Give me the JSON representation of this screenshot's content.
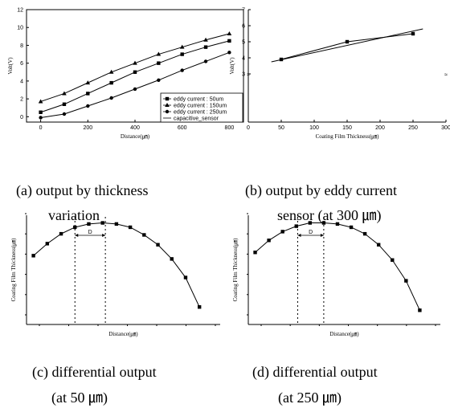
{
  "captions": {
    "a_line1": "(a) output by thickness",
    "a_line2": "variation",
    "b_line1": "(b) output by eddy current",
    "b_line2": "sensor (at 300 ㎛)",
    "c_line1": "(c) differential output",
    "c_line2": "(at 50 ㎛)",
    "d_line1": "(d) differential output",
    "d_line2": "(at 250  ㎛)"
  },
  "chart_data": [
    {
      "id": "a",
      "type": "line",
      "xlabel": "Distance(㎛)",
      "ylabel": "Volt(V)",
      "xlim": [
        -60,
        860
      ],
      "ylim": [
        -0.6,
        12
      ],
      "xticks": [
        0,
        200,
        400,
        600,
        800
      ],
      "yticks": [
        0,
        2,
        4,
        6,
        8,
        10,
        12
      ],
      "legend_position": "bottom-right",
      "series": [
        {
          "name": "eddy current : 50um",
          "marker": "square",
          "x": [
            0,
            100,
            200,
            300,
            400,
            500,
            600,
            700,
            800
          ],
          "y": [
            0.5,
            1.4,
            2.6,
            3.8,
            5.0,
            6.0,
            7.0,
            7.8,
            8.5
          ]
        },
        {
          "name": "eddy current : 150um",
          "marker": "triangle",
          "x": [
            0,
            100,
            200,
            300,
            400,
            500,
            600,
            700,
            800
          ],
          "y": [
            1.7,
            2.6,
            3.8,
            5.0,
            6.0,
            7.0,
            7.8,
            8.6,
            9.3
          ]
        },
        {
          "name": "eddy current : 250um",
          "marker": "circle",
          "x": [
            0,
            100,
            200,
            300,
            400,
            500,
            600,
            700,
            800
          ],
          "y": [
            -0.1,
            0.3,
            1.2,
            2.1,
            3.1,
            4.1,
            5.2,
            6.2,
            7.2
          ]
        },
        {
          "name": "capacitive_sensor",
          "marker": "none",
          "x": [],
          "y": []
        }
      ]
    },
    {
      "id": "b",
      "type": "line",
      "xlabel": "Coating Film Thickness(㎛)",
      "ylabel": "Volt(V)",
      "xlim": [
        0,
        300
      ],
      "ylim": [
        0,
        7
      ],
      "xticks": [
        0,
        50,
        100,
        150,
        200,
        250,
        300
      ],
      "yticks": [
        3,
        4,
        5,
        6,
        7
      ],
      "series": [
        {
          "marker": "square",
          "x": [
            50,
            150,
            250
          ],
          "y": [
            3.9,
            5.0,
            5.5
          ]
        }
      ],
      "fit_line": {
        "x": [
          35,
          265
        ],
        "y": [
          3.75,
          5.8
        ]
      }
    },
    {
      "id": "c",
      "type": "line",
      "xlabel": "Distance(㎛)",
      "ylabel": "Coating Film Thickness(㎛)",
      "xlim": [
        -0.5,
        13.5
      ],
      "ylim": [
        0,
        10
      ],
      "series": [
        {
          "marker": "square",
          "x": [
            0,
            1,
            2,
            3,
            4,
            5,
            6,
            7,
            8,
            9,
            10,
            11,
            12
          ],
          "y": [
            6.3,
            7.4,
            8.3,
            8.9,
            9.2,
            9.3,
            9.2,
            8.9,
            8.2,
            7.3,
            6.0,
            4.3,
            1.6
          ]
        }
      ],
      "annotation": {
        "label": "D",
        "from_x": 3,
        "to_x": 5.2
      }
    },
    {
      "id": "d",
      "type": "line",
      "xlabel": "Distance(㎛)",
      "ylabel": "Coating Film Thickness(㎛)",
      "xlim": [
        -0.5,
        13.5
      ],
      "ylim": [
        0,
        10
      ],
      "series": [
        {
          "marker": "square",
          "x": [
            0,
            1,
            2,
            3,
            4,
            5,
            6,
            7,
            8,
            9,
            10,
            11,
            12
          ],
          "y": [
            6.6,
            7.7,
            8.5,
            9.0,
            9.3,
            9.3,
            9.2,
            8.9,
            8.3,
            7.3,
            5.9,
            4.0,
            1.3
          ]
        }
      ],
      "annotation": {
        "label": "D",
        "from_x": 3.1,
        "to_x": 5.0
      }
    }
  ]
}
